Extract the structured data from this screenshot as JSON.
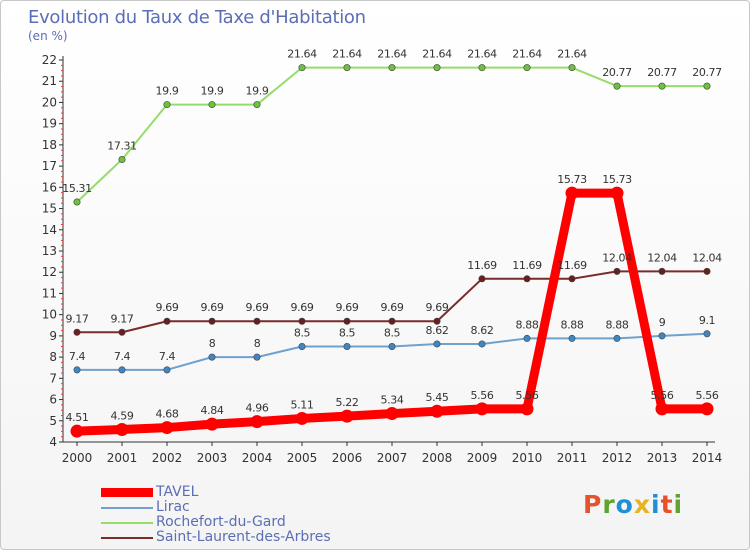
{
  "title": "Evolution du Taux de Taxe d'Habitation",
  "subtitle": "(en %)",
  "logo": {
    "text": "Proxiti",
    "letter_colors": [
      "#e8522b",
      "#5fa32e",
      "#1f8fd6",
      "#e8b321",
      "#1f8fd6",
      "#e8522b",
      "#5fa32e"
    ]
  },
  "chart_data": {
    "type": "line",
    "title": "Evolution du Taux de Taxe d'Habitation",
    "ylabel": "(en %)",
    "xlabel": "",
    "x": [
      "2000",
      "2001",
      "2002",
      "2003",
      "2004",
      "2005",
      "2006",
      "2007",
      "2008",
      "2009",
      "2010",
      "2011",
      "2012",
      "2013",
      "2014"
    ],
    "ylim": [
      4,
      22
    ],
    "yticks": [
      4,
      5,
      6,
      7,
      8,
      9,
      10,
      11,
      12,
      13,
      14,
      15,
      16,
      17,
      18,
      19,
      20,
      21,
      22
    ],
    "grid": false,
    "legend_position": "bottom-left",
    "series": [
      {
        "name": "TAVEL",
        "color": "#ff0000",
        "marker_color": "#ff0000",
        "bold": true,
        "values": [
          4.51,
          4.59,
          4.68,
          4.84,
          4.96,
          5.11,
          5.22,
          5.34,
          5.45,
          5.56,
          5.56,
          15.73,
          15.73,
          5.56,
          5.56
        ],
        "labels": [
          "4.51",
          "4.59",
          "4.68",
          "4.84",
          "4.96",
          "5.11",
          "5.22",
          "5.34",
          "5.45",
          "5.56",
          "5.56",
          "15.73",
          "15.73",
          "5.56",
          "5.56"
        ]
      },
      {
        "name": "Lirac",
        "color": "#6fa1cf",
        "marker_color": "#3f86c4",
        "bold": false,
        "values": [
          7.4,
          7.4,
          7.4,
          8,
          8,
          8.5,
          8.5,
          8.5,
          8.62,
          8.62,
          8.88,
          8.88,
          8.88,
          9,
          9.1
        ],
        "labels": [
          "7.4",
          "7.4",
          "7.4",
          "8",
          "8",
          "8.5",
          "8.5",
          "8.5",
          "8.62",
          "8.62",
          "8.88",
          "8.88",
          "8.88",
          "9",
          "9.1"
        ]
      },
      {
        "name": "Rochefort-du-Gard",
        "color": "#96dc6b",
        "marker_color": "#6cc23a",
        "bold": false,
        "values": [
          15.31,
          17.31,
          19.9,
          19.9,
          19.9,
          21.64,
          21.64,
          21.64,
          21.64,
          21.64,
          21.64,
          21.64,
          20.77,
          20.77,
          20.77
        ],
        "labels": [
          "15.31",
          "17.31",
          "19.9",
          "19.9",
          "19.9",
          "21.64",
          "21.64",
          "21.64",
          "21.64",
          "21.64",
          "21.64",
          "21.64",
          "20.77",
          "20.77",
          "20.77"
        ]
      },
      {
        "name": "Saint-Laurent-des-Arbres",
        "color": "#7a2b2b",
        "marker_color": "#6b1e1e",
        "bold": false,
        "values": [
          9.17,
          9.17,
          9.69,
          9.69,
          9.69,
          9.69,
          9.69,
          9.69,
          9.69,
          11.69,
          11.69,
          11.69,
          12.04,
          12.04,
          12.04
        ],
        "labels": [
          "9.17",
          "9.17",
          "9.69",
          "9.69",
          "9.69",
          "9.69",
          "9.69",
          "9.69",
          "9.69",
          "11.69",
          "11.69",
          "11.69",
          "12.04",
          "12.04",
          "12.04"
        ]
      }
    ]
  }
}
